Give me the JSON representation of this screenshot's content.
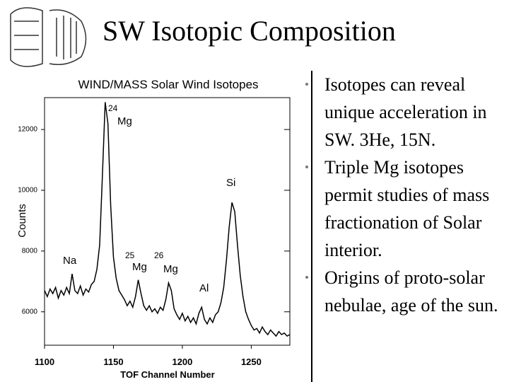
{
  "slide": {
    "title": "SW Isotopic Composition",
    "bullets": [
      "Isotopes can reveal unique acceleration in SW. 3He, 15N.",
      "Triple Mg isotopes permit studies of mass fractionation of Solar interior.",
      "Origins of proto-solar nebulae, age of the sun."
    ]
  },
  "chart_data": {
    "type": "line",
    "title": "WIND/MASS Solar Wind Isotopes",
    "x_label": "TOF Channel Number",
    "y_label": "Counts",
    "annotations": [
      "24",
      "Mg",
      "Si",
      "Na",
      "25",
      "26",
      "Mg",
      "Mg",
      "Al"
    ],
    "x": [
      1100,
      1102,
      1104,
      1106,
      1108,
      1110,
      1112,
      1114,
      1116,
      1118,
      1120,
      1122,
      1124,
      1126,
      1128,
      1130,
      1132,
      1134,
      1136,
      1138,
      1140,
      1142,
      1144,
      1146,
      1148,
      1150,
      1152,
      1154,
      1156,
      1158,
      1160,
      1162,
      1164,
      1166,
      1168,
      1170,
      1172,
      1174,
      1176,
      1178,
      1180,
      1182,
      1184,
      1186,
      1188,
      1190,
      1192,
      1194,
      1196,
      1198,
      1200,
      1202,
      1204,
      1206,
      1208,
      1210,
      1212,
      1214,
      1216,
      1218,
      1220,
      1222,
      1224,
      1226,
      1228,
      1230,
      1232,
      1234,
      1236,
      1238,
      1240,
      1242,
      1244,
      1246,
      1248,
      1250,
      1252,
      1254,
      1256,
      1258,
      1260,
      1262,
      1264,
      1266,
      1268,
      1270,
      1272,
      1274,
      1276,
      1278
    ],
    "series": [
      {
        "color": "#000000",
        "values": [
          6700,
          6500,
          6750,
          6600,
          6800,
          6450,
          6700,
          6550,
          6800,
          6600,
          7250,
          6700,
          6600,
          6850,
          6550,
          6750,
          6650,
          6900,
          7000,
          7400,
          8200,
          10500,
          12900,
          12200,
          9500,
          7800,
          7100,
          6700,
          6550,
          6400,
          6200,
          6350,
          6150,
          6500,
          7050,
          6600,
          6200,
          6050,
          6200,
          6000,
          6100,
          5950,
          6150,
          6050,
          6400,
          6950,
          6700,
          6100,
          5900,
          5750,
          5950,
          5700,
          5850,
          5650,
          5800,
          5600,
          5950,
          6150,
          5750,
          5600,
          5800,
          5650,
          5900,
          6000,
          6300,
          6800,
          7700,
          8800,
          9600,
          9300,
          8200,
          7200,
          6500,
          6000,
          5750,
          5550,
          5400,
          5450,
          5300,
          5500,
          5350,
          5250,
          5400,
          5300,
          5200,
          5350,
          5250,
          5300,
          5200,
          5250
        ]
      }
    ],
    "xlim": [
      1100,
      1278
    ],
    "ylim": [
      4900,
      13050
    ],
    "xticks": [
      1100,
      1150,
      1200,
      1250
    ],
    "yticks": [
      6000,
      8000,
      10000,
      12000
    ]
  }
}
